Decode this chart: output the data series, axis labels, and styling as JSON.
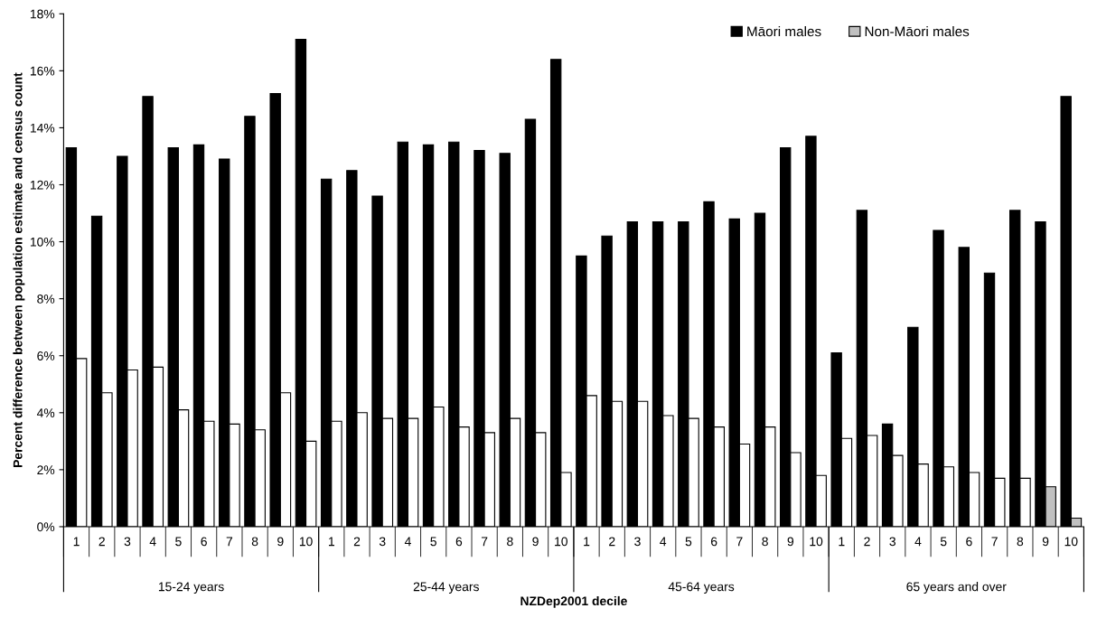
{
  "chart_data": {
    "type": "bar",
    "xlabel": "NZDep2001 decile",
    "ylabel": "Percent difference between population estimate and census count",
    "categories": [
      "1",
      "2",
      "3",
      "4",
      "5",
      "6",
      "7",
      "8",
      "9",
      "10",
      "1",
      "2",
      "3",
      "4",
      "5",
      "6",
      "7",
      "8",
      "9",
      "10",
      "1",
      "2",
      "3",
      "4",
      "5",
      "6",
      "7",
      "8",
      "9",
      "10",
      "1",
      "2",
      "3",
      "4",
      "5",
      "6",
      "7",
      "8",
      "9",
      "10"
    ],
    "annotations": [
      "15-24 years",
      "25-44 years",
      "45-64 years",
      "65 years and over"
    ],
    "series": [
      {
        "name": "Māori males",
        "color": "#000000",
        "values": [
          13.3,
          10.9,
          13.0,
          15.1,
          13.3,
          13.4,
          12.9,
          14.4,
          15.2,
          17.1,
          12.2,
          12.5,
          11.6,
          13.5,
          13.4,
          13.5,
          13.2,
          13.1,
          14.3,
          16.4,
          9.5,
          10.2,
          10.7,
          10.7,
          10.7,
          11.4,
          10.8,
          11.0,
          13.3,
          13.7,
          6.1,
          11.1,
          3.6,
          7.0,
          10.4,
          9.8,
          8.9,
          11.1,
          10.7,
          15.1
        ]
      },
      {
        "name": "Non-Māori males",
        "color": "#c0c0c0",
        "colors": [
          "#ffffff",
          "#ffffff",
          "#ffffff",
          "#ffffff",
          "#ffffff",
          "#ffffff",
          "#ffffff",
          "#ffffff",
          "#ffffff",
          "#ffffff",
          "#ffffff",
          "#ffffff",
          "#ffffff",
          "#ffffff",
          "#ffffff",
          "#ffffff",
          "#ffffff",
          "#ffffff",
          "#ffffff",
          "#ffffff",
          "#ffffff",
          "#ffffff",
          "#ffffff",
          "#ffffff",
          "#ffffff",
          "#ffffff",
          "#ffffff",
          "#ffffff",
          "#ffffff",
          "#ffffff",
          "#ffffff",
          "#ffffff",
          "#ffffff",
          "#ffffff",
          "#ffffff",
          "#ffffff",
          "#ffffff",
          "#ffffff",
          "#c0c0c0",
          "#c0c0c0"
        ],
        "values": [
          5.9,
          4.7,
          5.5,
          5.6,
          4.1,
          3.7,
          3.6,
          3.4,
          4.7,
          3.0,
          3.7,
          4.0,
          3.8,
          3.8,
          4.2,
          3.5,
          3.3,
          3.8,
          3.3,
          1.9,
          4.6,
          4.4,
          4.4,
          3.9,
          3.8,
          3.5,
          2.9,
          3.5,
          2.6,
          1.8,
          3.1,
          3.2,
          2.5,
          2.2,
          2.1,
          1.9,
          1.7,
          1.7,
          1.4,
          0.3
        ]
      }
    ],
    "ylim": [
      0,
      18
    ],
    "yticks": [
      {
        "value": 0,
        "label": "0%"
      },
      {
        "value": 2,
        "label": "2%"
      },
      {
        "value": 4,
        "label": "4%"
      },
      {
        "value": 6,
        "label": "6%"
      },
      {
        "value": 8,
        "label": "8%"
      },
      {
        "value": 10,
        "label": "10%"
      },
      {
        "value": 12,
        "label": "12%"
      },
      {
        "value": 14,
        "label": "14%"
      },
      {
        "value": 16,
        "label": "16%"
      },
      {
        "value": 18,
        "label": "18%"
      }
    ],
    "grid": false,
    "legend": "top right"
  }
}
